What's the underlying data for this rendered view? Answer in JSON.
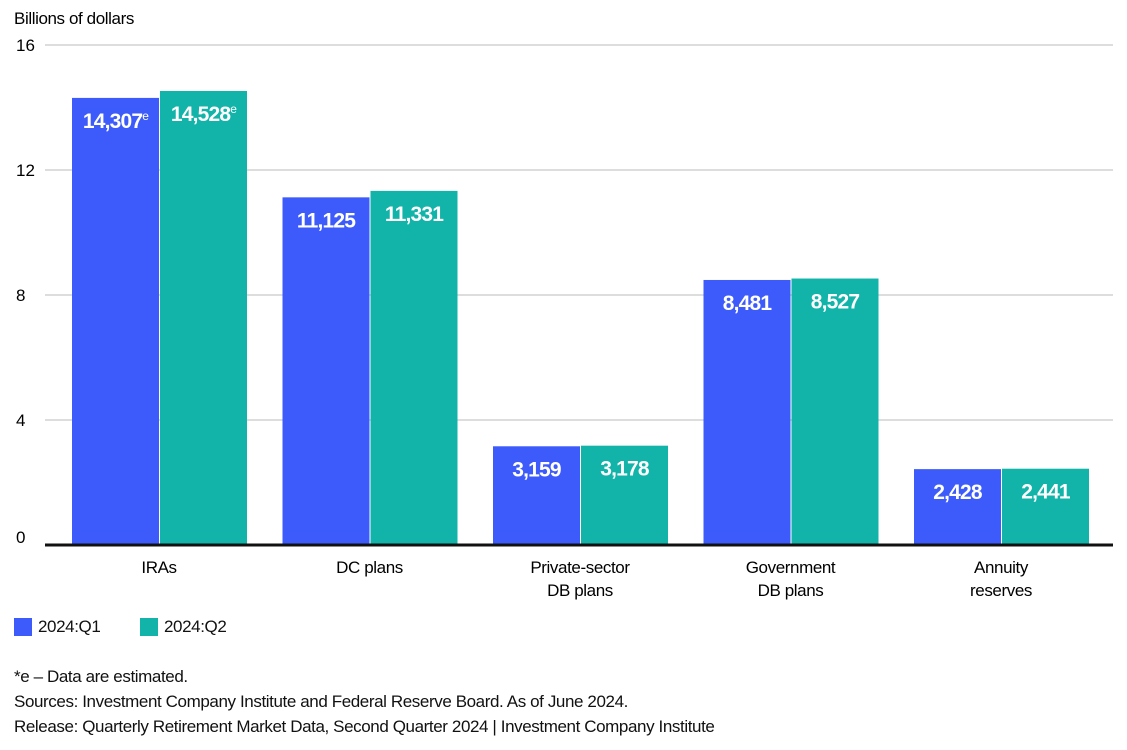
{
  "chart_data": {
    "type": "bar",
    "ylabel": "Billions of dollars",
    "ylim": [
      0,
      16
    ],
    "yticks": [
      "0",
      "4",
      "8",
      "12",
      "16"
    ],
    "grid": true,
    "categories": [
      [
        "IRAs"
      ],
      [
        "DC plans"
      ],
      [
        "Private-sector",
        "DB plans"
      ],
      [
        "Government",
        "DB plans"
      ],
      [
        "Annuity",
        "reserves"
      ]
    ],
    "series": [
      {
        "name": "2024:Q1",
        "color": "#3D5BFA",
        "values": [
          14.307,
          11.125,
          3.159,
          8.481,
          2.428
        ],
        "labels": [
          "14,307",
          "11,125",
          "3,159",
          "8,481",
          "2,428"
        ],
        "estimated": [
          true,
          false,
          false,
          false,
          false
        ]
      },
      {
        "name": "2024:Q2",
        "color": "#12B3A8",
        "values": [
          14.528,
          11.331,
          3.178,
          8.527,
          2.441
        ],
        "labels": [
          "14,528",
          "11,331",
          "3,178",
          "8,527",
          "2,441"
        ],
        "estimated": [
          true,
          false,
          false,
          false,
          false
        ]
      }
    ],
    "estimate_marker": "e",
    "legend": "bottom-left"
  },
  "footnotes": {
    "estimate": "*e – Data are estimated.",
    "sources": "Sources: Investment Company Institute and Federal Reserve Board. As of June 2024.",
    "release": "Release: Quarterly Retirement Market Data, Second Quarter 2024 | Investment Company Institute"
  }
}
